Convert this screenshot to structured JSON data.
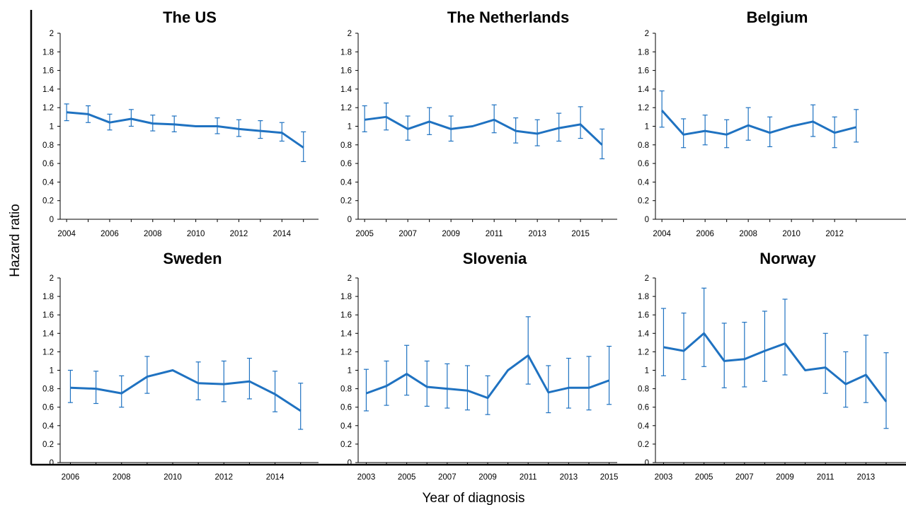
{
  "figure": {
    "ylabel": "Hazard ratio",
    "xlabel": "Year of diagnosis",
    "line_color": "#1F72C1"
  },
  "chart_data": [
    {
      "type": "line",
      "title": "The US",
      "ylim": [
        0,
        2
      ],
      "yticks": [
        "0",
        "0.2",
        "0.4",
        "0.6",
        "0.8",
        "1",
        "1.2",
        "1.4",
        "1.6",
        "1.8",
        "2"
      ],
      "xlim": [
        2003.7,
        2015.7
      ],
      "xticks": [
        "2004",
        "2006",
        "2008",
        "2010",
        "2012",
        "2014"
      ],
      "x": [
        2004,
        2005,
        2006,
        2007,
        2008,
        2009,
        2010,
        2011,
        2012,
        2013,
        2014,
        2015
      ],
      "values": [
        1.15,
        1.13,
        1.04,
        1.08,
        1.03,
        1.02,
        1.0,
        1.0,
        0.97,
        0.95,
        0.93,
        0.77
      ],
      "ci_low": [
        1.06,
        1.04,
        0.96,
        1.0,
        0.95,
        0.94,
        null,
        0.92,
        0.89,
        0.87,
        0.84,
        0.62
      ],
      "ci_high": [
        1.24,
        1.22,
        1.13,
        1.18,
        1.12,
        1.11,
        null,
        1.09,
        1.07,
        1.06,
        1.04,
        0.94
      ]
    },
    {
      "type": "line",
      "title": "The Netherlands",
      "ylim": [
        0,
        2
      ],
      "yticks": [
        "0",
        "0.2",
        "0.4",
        "0.6",
        "0.8",
        "1",
        "1.2",
        "1.4",
        "1.6",
        "1.8",
        "2"
      ],
      "xlim": [
        2004.7,
        2016.7
      ],
      "xticks": [
        "2005",
        "2007",
        "2009",
        "2011",
        "2013",
        "2015"
      ],
      "x": [
        2005,
        2006,
        2007,
        2008,
        2009,
        2010,
        2011,
        2012,
        2013,
        2014,
        2015,
        2016
      ],
      "values": [
        1.07,
        1.1,
        0.97,
        1.05,
        0.97,
        1.0,
        1.07,
        0.95,
        0.92,
        0.98,
        1.02,
        0.8
      ],
      "ci_low": [
        0.94,
        0.96,
        0.85,
        0.91,
        0.84,
        null,
        0.93,
        0.82,
        0.79,
        0.84,
        0.87,
        0.65
      ],
      "ci_high": [
        1.22,
        1.25,
        1.11,
        1.2,
        1.11,
        null,
        1.23,
        1.09,
        1.07,
        1.14,
        1.21,
        0.97
      ]
    },
    {
      "type": "line",
      "title": "Belgium",
      "ylim": [
        0,
        2
      ],
      "yticks": [
        "0",
        "0.2",
        "0.4",
        "0.6",
        "0.8",
        "1",
        "1.2",
        "1.4",
        "1.6",
        "1.8",
        "2"
      ],
      "xlim": [
        2003.7,
        2015.7
      ],
      "xticks": [
        "2004",
        "2006",
        "2008",
        "2010",
        "2012"
      ],
      "x": [
        2004,
        2005,
        2006,
        2007,
        2008,
        2009,
        2010,
        2011,
        2012,
        2013
      ],
      "values": [
        1.17,
        0.91,
        0.95,
        0.91,
        1.01,
        0.93,
        1.0,
        1.05,
        0.93,
        0.99
      ],
      "ci_low": [
        0.99,
        0.77,
        0.8,
        0.77,
        0.85,
        0.78,
        null,
        0.89,
        0.77,
        0.83
      ],
      "ci_high": [
        1.38,
        1.08,
        1.12,
        1.07,
        1.2,
        1.1,
        null,
        1.23,
        1.1,
        1.18
      ]
    },
    {
      "type": "line",
      "title": "Sweden",
      "ylim": [
        0,
        2
      ],
      "yticks": [
        "0",
        "0.2",
        "0.4",
        "0.6",
        "0.8",
        "1",
        "1.2",
        "1.4",
        "1.6",
        "1.8",
        "2"
      ],
      "xlim": [
        2005.6,
        2015.7
      ],
      "xticks": [
        "2006",
        "2008",
        "2010",
        "2012",
        "2014"
      ],
      "x": [
        2006,
        2007,
        2008,
        2009,
        2010,
        2011,
        2012,
        2013,
        2014,
        2015
      ],
      "values": [
        0.81,
        0.8,
        0.75,
        0.93,
        1.0,
        0.86,
        0.85,
        0.88,
        0.74,
        0.56
      ],
      "ci_low": [
        0.65,
        0.64,
        0.6,
        0.75,
        null,
        0.68,
        0.66,
        0.69,
        0.55,
        0.36
      ],
      "ci_high": [
        1.0,
        0.99,
        0.94,
        1.15,
        null,
        1.09,
        1.1,
        1.13,
        0.99,
        0.86
      ]
    },
    {
      "type": "line",
      "title": "Slovenia",
      "ylim": [
        0,
        2
      ],
      "yticks": [
        "0",
        "0.2",
        "0.4",
        "0.6",
        "0.8",
        "1",
        "1.2",
        "1.4",
        "1.6",
        "1.8",
        "2"
      ],
      "xlim": [
        2002.6,
        2015.4
      ],
      "xticks": [
        "2003",
        "2005",
        "2007",
        "2009",
        "2011",
        "2013",
        "2015"
      ],
      "x": [
        2003,
        2004,
        2005,
        2006,
        2007,
        2008,
        2009,
        2010,
        2011,
        2012,
        2013,
        2014,
        2015
      ],
      "values": [
        0.75,
        0.83,
        0.96,
        0.82,
        0.8,
        0.78,
        0.7,
        1.0,
        1.16,
        0.76,
        0.81,
        0.81,
        0.89
      ],
      "ci_low": [
        0.56,
        0.62,
        0.73,
        0.61,
        0.59,
        0.57,
        0.52,
        null,
        0.85,
        0.54,
        0.59,
        0.57,
        0.63
      ],
      "ci_high": [
        1.01,
        1.1,
        1.27,
        1.1,
        1.07,
        1.05,
        0.94,
        null,
        1.58,
        1.05,
        1.13,
        1.15,
        1.26
      ]
    },
    {
      "type": "line",
      "title": "Norway",
      "ylim": [
        0,
        2
      ],
      "yticks": [
        "0",
        "0.2",
        "0.4",
        "0.6",
        "0.8",
        "1",
        "1.2",
        "1.4",
        "1.6",
        "1.8",
        "2"
      ],
      "xlim": [
        2002.6,
        2015.4
      ],
      "xticks": [
        "2003",
        "2005",
        "2007",
        "2009",
        "2011",
        "2013"
      ],
      "x": [
        2003,
        2004,
        2005,
        2006,
        2007,
        2008,
        2009,
        2010,
        2011,
        2012,
        2013,
        2014
      ],
      "values": [
        1.25,
        1.21,
        1.4,
        1.1,
        1.12,
        1.21,
        1.29,
        1.0,
        1.03,
        0.85,
        0.95,
        0.66
      ],
      "ci_low": [
        0.94,
        0.9,
        1.04,
        0.81,
        0.82,
        0.88,
        0.95,
        null,
        0.75,
        0.6,
        0.65,
        0.37
      ],
      "ci_high": [
        1.67,
        1.62,
        1.89,
        1.51,
        1.52,
        1.64,
        1.77,
        null,
        1.4,
        1.2,
        1.38,
        1.19
      ]
    }
  ]
}
